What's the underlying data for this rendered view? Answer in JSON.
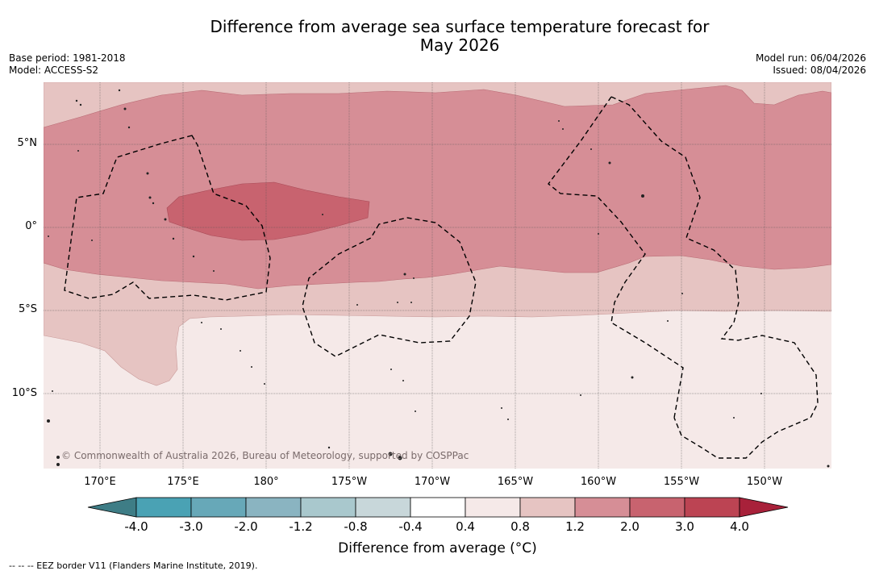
{
  "title_line1": "Difference from average sea surface temperature forecast for",
  "title_line2": "May 2026",
  "base_period": "Base period: 1981-2018",
  "model": "Model: ACCESS-S2",
  "model_run": "Model run: 06/04/2026",
  "issued": "Issued: 08/04/2026",
  "copyright": "© Commonwealth of Australia 2026, Bureau of Meteorology, supported by COSPPac",
  "lon_labels": [
    "170°E",
    "175°E",
    "180°",
    "175°W",
    "170°W",
    "165°W",
    "160°W",
    "155°W",
    "150°W"
  ],
  "lat_labels": [
    "5°N",
    "0°",
    "5°S",
    "10°S"
  ],
  "colorbar": {
    "ticks": [
      "-4.0",
      "-3.0",
      "-2.0",
      "-1.2",
      "-0.8",
      "-0.4",
      "0.4",
      "0.8",
      "1.2",
      "2.0",
      "3.0",
      "4.0"
    ],
    "colors": [
      "#3e7d86",
      "#4aa2b4",
      "#67a8b8",
      "#8ab4c1",
      "#a9c8cd",
      "#c8d7da",
      "#ffffff",
      "#f5e9e8",
      "#e6c4c2",
      "#d68e96",
      "#c8636f",
      "#bc4453",
      "#a8213a"
    ],
    "label": "Difference from average (°C)"
  },
  "footnote": "--  --  -- EEZ border V11 (Flanders Marine Institute, 2019).",
  "colors": {
    "band_0_4_0_8": "#f5e9e8",
    "band_0_8_1_2": "#e6c4c2",
    "band_1_2_2_0": "#d68e96",
    "band_2_0_3_0": "#c8636f"
  }
}
